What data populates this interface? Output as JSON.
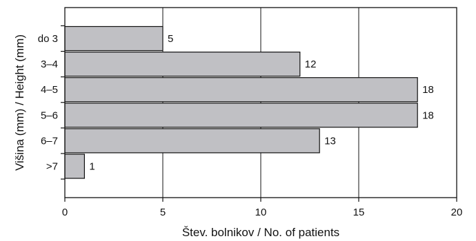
{
  "chart_data": {
    "type": "bar",
    "orientation": "horizontal",
    "title": "",
    "categories": [
      "do 3",
      "3–4",
      "4–5",
      "5–6",
      "6–7",
      ">7"
    ],
    "values": [
      5,
      12,
      18,
      18,
      13,
      1
    ],
    "xlabel": "Štev. bolnikov / No. of patients",
    "ylabel": "Višina (mm) / Height (mm)",
    "xlim": [
      0,
      20
    ],
    "xticks": [
      0,
      5,
      10,
      15,
      20
    ],
    "grid": "vertical",
    "legend": "none",
    "data_labels": true,
    "bar_color": "#c0c0c4",
    "bar_edge_color": "#111111"
  }
}
